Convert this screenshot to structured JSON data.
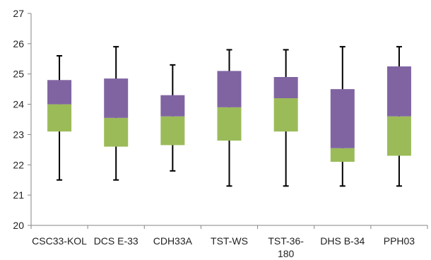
{
  "chart_data": {
    "type": "boxplot",
    "categories": [
      "CSC33-KOL",
      "DCS E-33",
      "CDH33A",
      "TST-WS",
      "TST-36-180",
      "DHS B-34",
      "PPH03"
    ],
    "category_label_lines": [
      [
        "CSC33-KOL"
      ],
      [
        "DCS E-33"
      ],
      [
        "CDH33A"
      ],
      [
        "TST-WS"
      ],
      [
        "TST-36-",
        "180"
      ],
      [
        "DHS B-34"
      ],
      [
        "PPH03"
      ]
    ],
    "boxes": [
      {
        "min": 21.5,
        "q1": 23.1,
        "median": 24.0,
        "q3": 24.8,
        "max": 25.6
      },
      {
        "min": 21.5,
        "q1": 22.6,
        "median": 23.55,
        "q3": 24.85,
        "max": 25.9
      },
      {
        "min": 21.8,
        "q1": 22.65,
        "median": 23.6,
        "q3": 24.3,
        "max": 25.3
      },
      {
        "min": 21.3,
        "q1": 22.8,
        "median": 23.9,
        "q3": 25.1,
        "max": 25.8
      },
      {
        "min": 21.3,
        "q1": 23.1,
        "median": 24.2,
        "q3": 24.9,
        "max": 25.8
      },
      {
        "min": 21.3,
        "q1": 22.1,
        "median": 22.55,
        "q3": 24.5,
        "max": 25.9
      },
      {
        "min": 21.3,
        "q1": 22.3,
        "median": 23.6,
        "q3": 25.25,
        "max": 25.9
      }
    ],
    "yticks": [
      20,
      21,
      22,
      23,
      24,
      25,
      26,
      27
    ],
    "ylim": [
      20,
      27
    ],
    "grid": false,
    "colors": {
      "lower_box": "#9bbb59",
      "upper_box": "#8064a2",
      "whisker": "#000000",
      "axis": "#868686"
    }
  }
}
